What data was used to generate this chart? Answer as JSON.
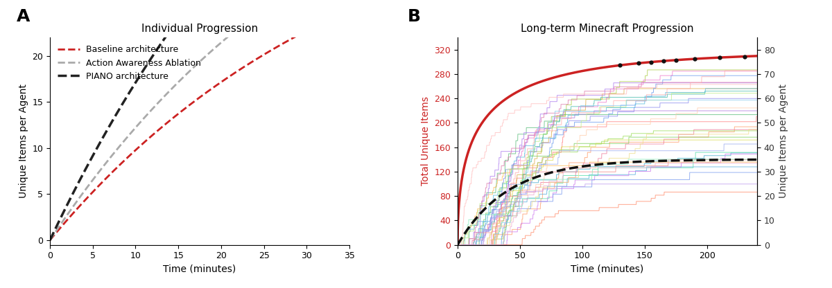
{
  "panel_A": {
    "title": "Individual Progression",
    "xlabel": "Time (minutes)",
    "ylabel": "Unique Items per Agent",
    "xlim": [
      0,
      35
    ],
    "ylim": [
      -0.5,
      22
    ],
    "yticks": [
      0,
      5,
      10,
      15,
      20
    ],
    "xticks": [
      0,
      5,
      10,
      15,
      20,
      25,
      30,
      35
    ],
    "curves": [
      {
        "label": "Baseline architecture",
        "color": "#CC2222",
        "linestyle": "dashed",
        "lw": 2.0,
        "a": 40.0,
        "b": 0.028
      },
      {
        "label": "Action Awareness Ablation",
        "color": "#AAAAAA",
        "linestyle": "dashed",
        "lw": 2.0,
        "a": 50.0,
        "b": 0.028
      },
      {
        "label": "PIANO architecture",
        "color": "#222222",
        "linestyle": "dashed",
        "lw": 2.5,
        "a": 70.0,
        "b": 0.028
      }
    ]
  },
  "panel_B": {
    "title": "Long-term Minecraft Progression",
    "xlabel": "Time (minutes)",
    "ylabel_left": "Total Unique Items",
    "ylabel_right": "Unique Items per Agent",
    "xlim": [
      0,
      240
    ],
    "ylim_left": [
      0,
      340
    ],
    "ylim_right": [
      0,
      85
    ],
    "yticks_left": [
      0,
      40,
      80,
      120,
      160,
      200,
      240,
      280,
      320
    ],
    "yticks_right": [
      0,
      10,
      20,
      30,
      40,
      50,
      60,
      70,
      80
    ],
    "xticks": [
      0,
      50,
      100,
      150,
      200
    ],
    "total_curve_color": "#CC2222",
    "total_curve_lw": 2.5,
    "total_a": 320,
    "total_k": 0.07,
    "piano_color": "#111111",
    "piano_lw": 2.5,
    "piano_a": 35,
    "piano_k": 0.025,
    "num_agents": 35,
    "agent_colors": [
      "#FF8080",
      "#FF9966",
      "#DDAA44",
      "#AACC44",
      "#77CC55",
      "#55BB77",
      "#44BBAA",
      "#44AACC",
      "#55AADD",
      "#6699EE",
      "#8888EE",
      "#AA77EE",
      "#CC77EE",
      "#EE77CC",
      "#EE7799",
      "#FF8866",
      "#FFBB55",
      "#DDDD55",
      "#99DD55",
      "#55DDAA",
      "#55BBDD",
      "#7799EE",
      "#AA77DD",
      "#DD77AA",
      "#EE8888",
      "#FFAAAA",
      "#FFCCAA",
      "#EEDD88",
      "#BBEE88",
      "#88EEBB",
      "#88CCEE",
      "#99AAEE",
      "#BB99EE",
      "#EEAACC",
      "#FFBBBB"
    ]
  },
  "label_A": "A",
  "label_B": "B",
  "label_fontsize": 18,
  "title_fontsize": 11,
  "axis_label_fontsize": 10,
  "tick_fontsize": 9,
  "legend_fontsize": 9,
  "bg_color": "#FFFFFF"
}
